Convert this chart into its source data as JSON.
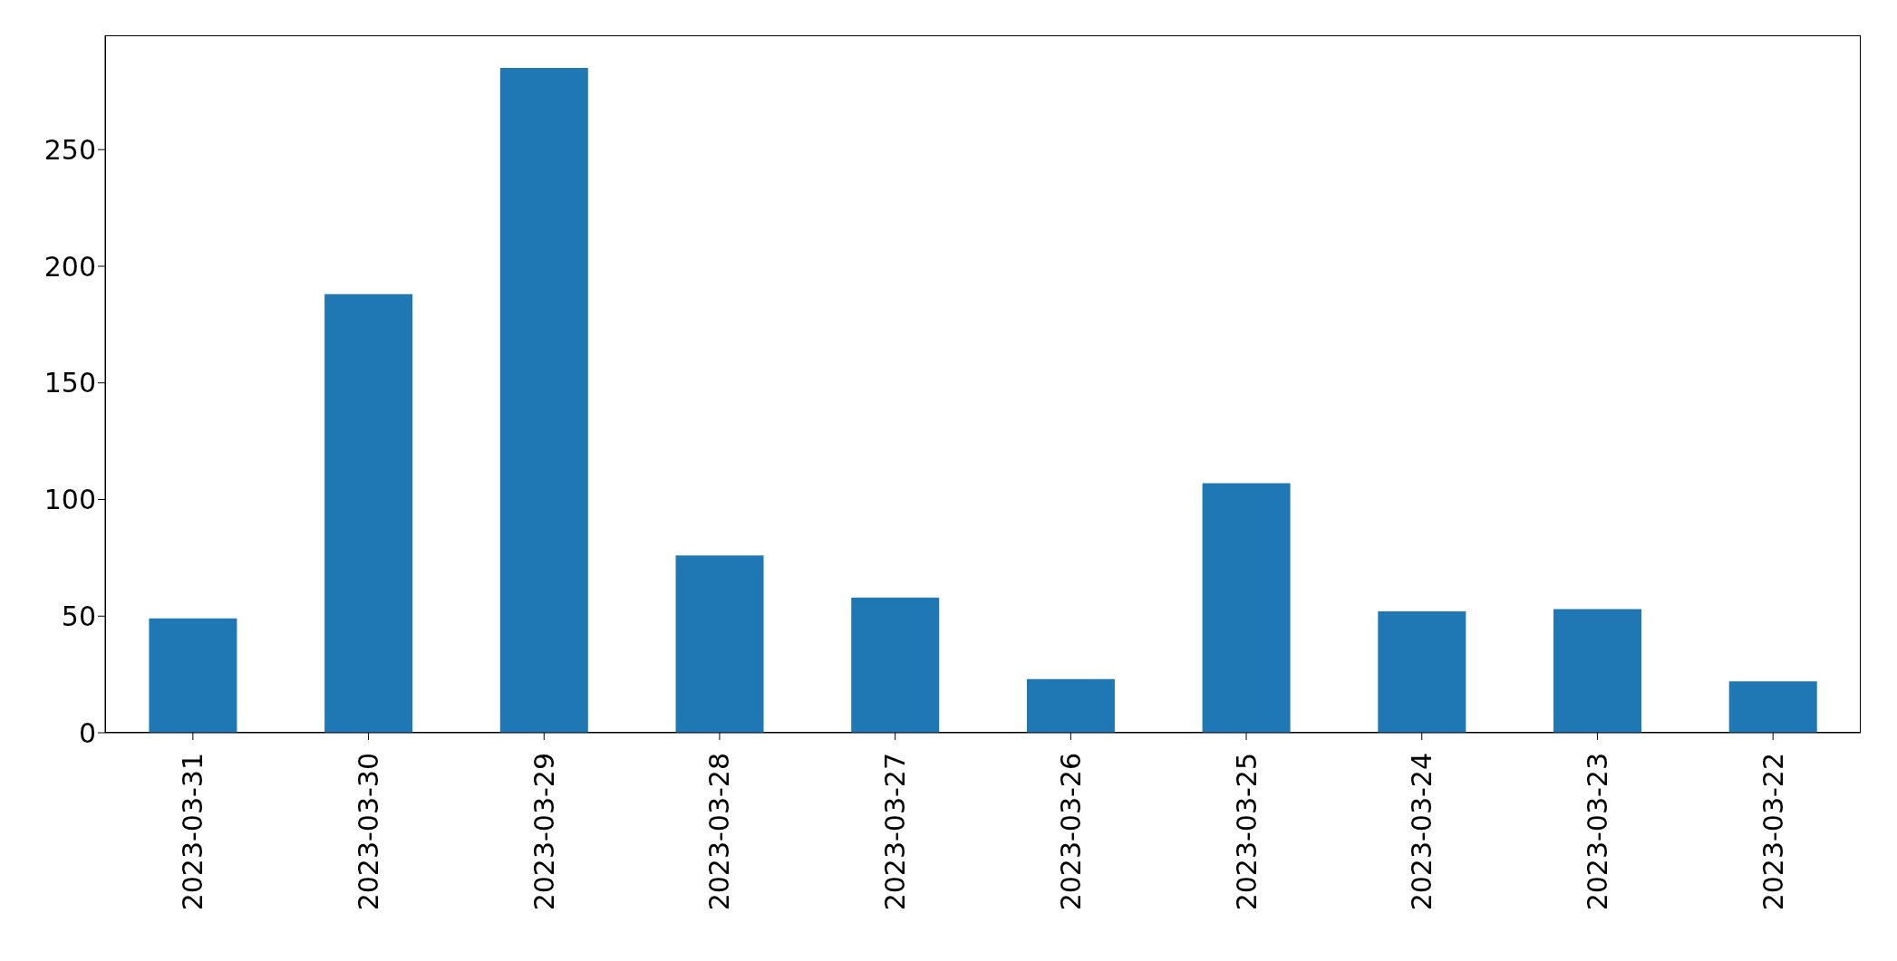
{
  "chart_data": {
    "type": "bar",
    "categories": [
      "2023-03-31",
      "2023-03-30",
      "2023-03-29",
      "2023-03-28",
      "2023-03-27",
      "2023-03-26",
      "2023-03-25",
      "2023-03-24",
      "2023-03-23",
      "2023-03-22"
    ],
    "values": [
      49,
      188,
      285,
      76,
      58,
      23,
      107,
      52,
      53,
      22
    ],
    "color": "#1f77b4",
    "ylim": [
      0,
      299
    ],
    "yticks": [
      0,
      50,
      100,
      150,
      200,
      250
    ],
    "grid": false
  }
}
